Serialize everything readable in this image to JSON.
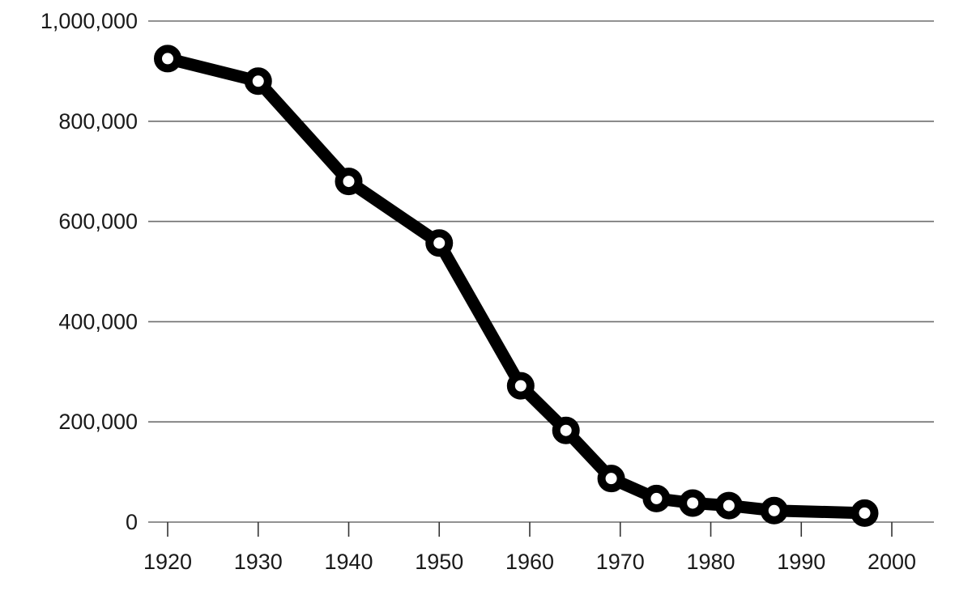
{
  "chart_data": {
    "type": "line",
    "title": "",
    "xlabel": "",
    "ylabel": "",
    "xlim": [
      1920,
      2000
    ],
    "ylim": [
      0,
      1000000
    ],
    "x_ticks": [
      1920,
      1930,
      1940,
      1950,
      1960,
      1970,
      1980,
      1990,
      2000
    ],
    "x_tick_labels": [
      "1920",
      "1930",
      "1940",
      "1950",
      "1960",
      "1970",
      "1980",
      "1990",
      "2000"
    ],
    "y_ticks": [
      0,
      200000,
      400000,
      600000,
      800000,
      1000000
    ],
    "y_tick_labels": [
      "0",
      "200,000",
      "400,000",
      "600,000",
      "800,000",
      "1,000,000"
    ],
    "grid": "horizontal",
    "legend": "none",
    "series": [
      {
        "color": "#000000",
        "marker_fill": "#ffffff",
        "points": [
          {
            "x": 1920,
            "y": 925000
          },
          {
            "x": 1930,
            "y": 880000
          },
          {
            "x": 1940,
            "y": 680000
          },
          {
            "x": 1950,
            "y": 557000
          },
          {
            "x": 1959,
            "y": 272000
          },
          {
            "x": 1964,
            "y": 183000
          },
          {
            "x": 1969,
            "y": 87000
          },
          {
            "x": 1974,
            "y": 47000
          },
          {
            "x": 1978,
            "y": 38000
          },
          {
            "x": 1982,
            "y": 33000
          },
          {
            "x": 1987,
            "y": 23000
          },
          {
            "x": 1997,
            "y": 18000
          }
        ]
      }
    ]
  }
}
